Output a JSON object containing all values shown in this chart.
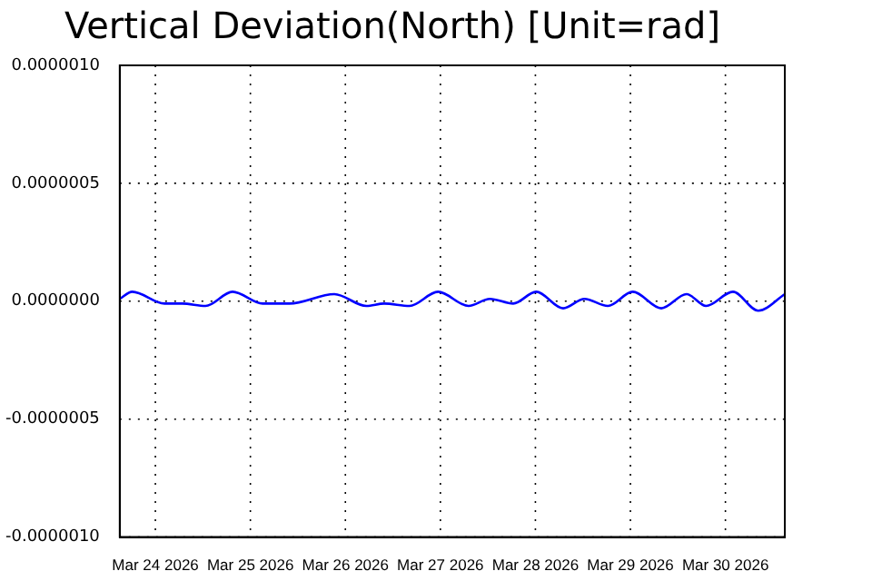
{
  "chart_data": {
    "type": "line",
    "title": "Vertical Deviation(North) [Unit=rad]",
    "x": [
      "2026-03-23T15:00",
      "2026-03-23T18:10",
      "2026-03-24T02:18",
      "2026-03-24T06:48",
      "2026-03-24T12:40",
      "2026-03-24T19:30",
      "2026-03-25T03:06",
      "2026-03-25T09:54",
      "2026-03-25T21:12",
      "2026-03-26T05:18",
      "2026-03-26T09:48",
      "2026-03-26T16:12",
      "2026-03-26T23:24",
      "2026-03-27T07:06",
      "2026-03-27T12:30",
      "2026-03-27T18:24",
      "2026-03-28T00:12",
      "2026-03-28T07:00",
      "2026-03-28T12:24",
      "2026-03-28T18:18",
      "2026-03-29T00:36",
      "2026-03-29T07:48",
      "2026-03-29T14:12",
      "2026-03-29T19:06",
      "2026-03-30T01:54",
      "2026-03-30T08:18",
      "2026-03-30T15:00"
    ],
    "series": [
      {
        "color": "#0000ff",
        "values": [
          1e-08,
          4e-08,
          -1e-08,
          -1e-08,
          -2e-08,
          4e-08,
          -1e-08,
          -1e-08,
          3e-08,
          -2e-08,
          -1e-08,
          -2e-08,
          4e-08,
          -2e-08,
          1e-08,
          -1e-08,
          4e-08,
          -3e-08,
          1e-08,
          -2e-08,
          4e-08,
          -3e-08,
          3e-08,
          -2e-08,
          4e-08,
          -4e-08,
          3e-08
        ]
      }
    ],
    "xlim": [
      "2026-03-23T15:00",
      "2026-03-30T15:00"
    ],
    "xticks": [
      {
        "value": "2026-03-24",
        "label": "Mar 24 2026"
      },
      {
        "value": "2026-03-25",
        "label": "Mar 25 2026"
      },
      {
        "value": "2026-03-26",
        "label": "Mar 26 2026"
      },
      {
        "value": "2026-03-27",
        "label": "Mar 27 2026"
      },
      {
        "value": "2026-03-28",
        "label": "Mar 28 2026"
      },
      {
        "value": "2026-03-29",
        "label": "Mar 29 2026"
      },
      {
        "value": "2026-03-30",
        "label": "Mar 30 2026"
      }
    ],
    "ylim": [
      -1e-06,
      1e-06
    ],
    "yticks": [
      {
        "value": -1e-06,
        "label": "-0.0000010"
      },
      {
        "value": -5e-07,
        "label": "-0.0000005"
      },
      {
        "value": 0,
        "label": "0.0000000"
      },
      {
        "value": 5e-07,
        "label": "0.0000005"
      },
      {
        "value": 1e-06,
        "label": "0.0000010"
      }
    ],
    "grid": true,
    "marker": "none",
    "line_style": "solid"
  }
}
